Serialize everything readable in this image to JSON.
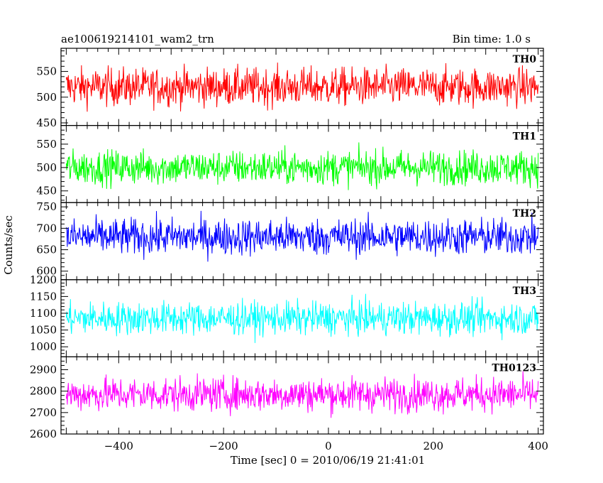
{
  "chart_data": {
    "type": "line",
    "title_left": "ae100619214101_wam2_trn",
    "title_right": "Bin time: 1.0 s",
    "xlabel": "Time [sec] 0 = 2010/06/19 21:41:01",
    "ylabel": "Counts/sec",
    "xlim": [
      -510,
      410
    ],
    "x_range": [
      -500,
      400
    ],
    "bin_time": 1.0,
    "x_ticks": [
      -400,
      -200,
      0,
      200,
      400
    ],
    "panels": [
      {
        "name": "TH0",
        "color": "#ff0000",
        "mean": 520,
        "amplitude": 30,
        "ylim": [
          445,
          595
        ],
        "y_ticks": [
          450,
          500,
          550
        ]
      },
      {
        "name": "TH1",
        "color": "#00ff00",
        "mean": 500,
        "amplitude": 30,
        "ylim": [
          425,
          590
        ],
        "y_ticks": [
          450,
          500,
          550
        ]
      },
      {
        "name": "TH2",
        "color": "#0000ff",
        "mean": 680,
        "amplitude": 35,
        "ylim": [
          580,
          760
        ],
        "y_ticks": [
          600,
          650,
          700,
          750
        ]
      },
      {
        "name": "TH3",
        "color": "#00ffff",
        "mean": 1085,
        "amplitude": 40,
        "ylim": [
          970,
          1200
        ],
        "y_ticks": [
          1000,
          1050,
          1100,
          1150,
          1200
        ]
      },
      {
        "name": "TH0123",
        "color": "#ff00ff",
        "mean": 2785,
        "amplitude": 65,
        "ylim": [
          2600,
          2960
        ],
        "y_ticks": [
          2600,
          2700,
          2800,
          2900
        ]
      }
    ]
  }
}
